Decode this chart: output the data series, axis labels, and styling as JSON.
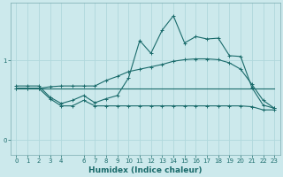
{
  "xlabel": "Humidex (Indice chaleur)",
  "background_color": "#cce9ec",
  "line_color": "#1a6b6b",
  "grid_color": "#b0d8dc",
  "xlim": [
    -0.5,
    23.5
  ],
  "ylim": [
    -0.18,
    1.72
  ],
  "yticks": [
    0,
    1
  ],
  "xticks": [
    0,
    1,
    2,
    3,
    4,
    6,
    7,
    8,
    9,
    10,
    11,
    12,
    13,
    14,
    15,
    16,
    17,
    18,
    19,
    20,
    21,
    22,
    23
  ],
  "line_zigzag_x": [
    0,
    1,
    2,
    3,
    4,
    5,
    6,
    7,
    8,
    9,
    10,
    11,
    12,
    13,
    14,
    15,
    16,
    17,
    18,
    19,
    20,
    21,
    22,
    23
  ],
  "line_zigzag_y": [
    0.68,
    0.68,
    0.68,
    0.54,
    0.46,
    0.5,
    0.56,
    0.47,
    0.52,
    0.56,
    0.78,
    1.25,
    1.09,
    1.38,
    1.56,
    1.22,
    1.3,
    1.27,
    1.28,
    1.06,
    1.05,
    0.66,
    0.44,
    0.4
  ],
  "line_trend_x": [
    0,
    1,
    2,
    3,
    4,
    5,
    6,
    7,
    8,
    9,
    10,
    11,
    12,
    13,
    14,
    15,
    16,
    17,
    18,
    19,
    20,
    21,
    22,
    23
  ],
  "line_trend_y": [
    0.65,
    0.65,
    0.65,
    0.67,
    0.68,
    0.68,
    0.68,
    0.68,
    0.75,
    0.8,
    0.86,
    0.89,
    0.92,
    0.95,
    0.99,
    1.01,
    1.02,
    1.02,
    1.01,
    0.97,
    0.89,
    0.7,
    0.5,
    0.4
  ],
  "line_flat_x": [
    0,
    1,
    2,
    3,
    4,
    5,
    6,
    7,
    8,
    9,
    10,
    11,
    12,
    13,
    14,
    15,
    16,
    17,
    18,
    19,
    20,
    21,
    22,
    23
  ],
  "line_flat_y": [
    0.65,
    0.65,
    0.65,
    0.65,
    0.65,
    0.65,
    0.65,
    0.65,
    0.65,
    0.65,
    0.65,
    0.65,
    0.65,
    0.65,
    0.65,
    0.65,
    0.65,
    0.65,
    0.65,
    0.65,
    0.65,
    0.65,
    0.65,
    0.65
  ],
  "line_bottom_x": [
    0,
    1,
    2,
    3,
    4,
    5,
    6,
    7,
    8,
    9,
    10,
    11,
    12,
    13,
    14,
    15,
    16,
    17,
    18,
    19,
    20,
    21,
    22,
    23
  ],
  "line_bottom_y": [
    0.65,
    0.65,
    0.65,
    0.52,
    0.43,
    0.43,
    0.5,
    0.43,
    0.43,
    0.43,
    0.43,
    0.43,
    0.43,
    0.43,
    0.43,
    0.43,
    0.43,
    0.43,
    0.43,
    0.43,
    0.43,
    0.42,
    0.38,
    0.38
  ]
}
